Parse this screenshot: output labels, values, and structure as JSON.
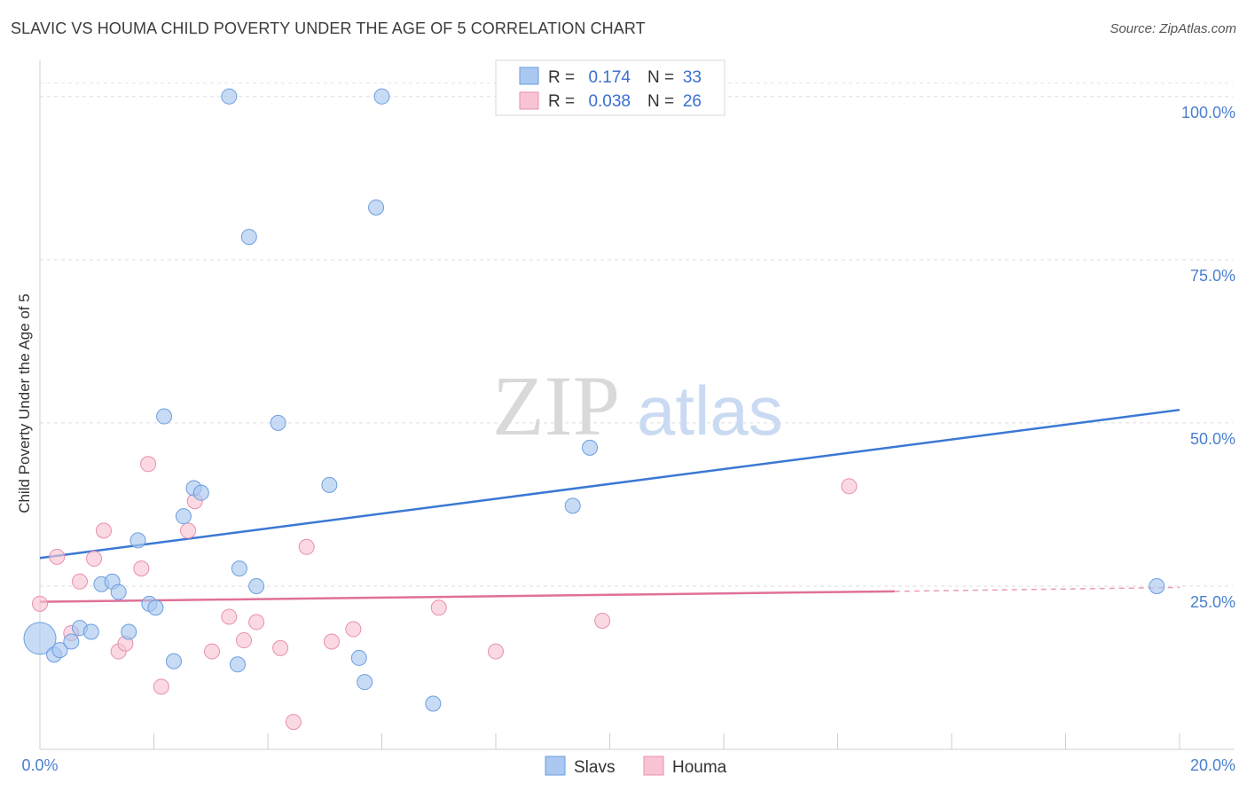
{
  "title": "SLAVIC VS HOUMA CHILD POVERTY UNDER THE AGE OF 5 CORRELATION CHART",
  "source": "Source: ZipAtlas.com",
  "watermark": {
    "zip": "ZIP",
    "atlas": "atlas"
  },
  "colors": {
    "slavs_fill": "#aac8f0",
    "slavs_stroke": "#6b9ee0",
    "slavs_line": "#3a78d4",
    "houma_fill": "#f8c4d4",
    "houma_stroke": "#e890aa",
    "houma_line": "#e0709a",
    "tick_label": "#4a7fd0"
  },
  "legend": {
    "rows": [
      {
        "r_label": "R =",
        "r_value": "0.174",
        "n_label": "N =",
        "n_value": "33"
      },
      {
        "r_label": "R =",
        "r_value": "0.038",
        "n_label": "N =",
        "n_value": "26"
      }
    ]
  },
  "chart_data": {
    "type": "scatter",
    "title": "SLAVIC VS HOUMA CHILD POVERTY UNDER THE AGE OF 5 CORRELATION CHART",
    "xlabel": "",
    "ylabel": "Child Poverty Under the Age of 5",
    "xlim": [
      0,
      20
    ],
    "ylim": [
      0,
      105
    ],
    "x_tick_labels": [
      "0.0%",
      "20.0%"
    ],
    "y_ticks": [
      25,
      50,
      75,
      100
    ],
    "y_tick_labels": [
      "25.0%",
      "50.0%",
      "75.0%",
      "100.0%"
    ],
    "grid": true,
    "legend_position": "top-center",
    "series": [
      {
        "name": "Slavs",
        "points": [
          [
            0.0,
            17.0
          ],
          [
            0.25,
            14.5
          ],
          [
            0.35,
            15.2
          ],
          [
            0.55,
            16.5
          ],
          [
            0.7,
            18.6
          ],
          [
            0.9,
            18.0
          ],
          [
            1.08,
            25.3
          ],
          [
            1.27,
            25.7
          ],
          [
            1.38,
            24.1
          ],
          [
            1.56,
            18.0
          ],
          [
            1.72,
            32.0
          ],
          [
            1.92,
            22.3
          ],
          [
            2.03,
            21.7
          ],
          [
            2.18,
            51.0
          ],
          [
            2.35,
            13.5
          ],
          [
            2.52,
            35.7
          ],
          [
            2.7,
            40.0
          ],
          [
            2.83,
            39.3
          ],
          [
            3.32,
            100.0
          ],
          [
            3.47,
            13.0
          ],
          [
            3.5,
            27.7
          ],
          [
            3.67,
            78.5
          ],
          [
            3.8,
            25.0
          ],
          [
            4.18,
            50.0
          ],
          [
            5.08,
            40.5
          ],
          [
            5.6,
            14.0
          ],
          [
            5.7,
            10.3
          ],
          [
            5.9,
            83.0
          ],
          [
            6.0,
            100.0
          ],
          [
            6.9,
            7.0
          ],
          [
            9.35,
            37.3
          ],
          [
            9.65,
            46.2
          ],
          [
            19.6,
            25.0
          ]
        ],
        "trend": [
          [
            0.0,
            29.3
          ],
          [
            20.0,
            52.0
          ]
        ]
      },
      {
        "name": "Houma",
        "points": [
          [
            0.0,
            22.3
          ],
          [
            0.3,
            29.5
          ],
          [
            0.55,
            17.8
          ],
          [
            0.7,
            25.7
          ],
          [
            0.95,
            29.2
          ],
          [
            1.12,
            33.5
          ],
          [
            1.38,
            15.0
          ],
          [
            1.5,
            16.2
          ],
          [
            1.78,
            27.7
          ],
          [
            1.9,
            43.7
          ],
          [
            2.13,
            9.6
          ],
          [
            2.6,
            33.5
          ],
          [
            2.72,
            38.0
          ],
          [
            3.02,
            15.0
          ],
          [
            3.32,
            20.3
          ],
          [
            3.58,
            16.7
          ],
          [
            3.8,
            19.5
          ],
          [
            4.22,
            15.5
          ],
          [
            4.45,
            4.2
          ],
          [
            4.68,
            31.0
          ],
          [
            5.12,
            16.5
          ],
          [
            5.5,
            18.4
          ],
          [
            7.0,
            21.7
          ],
          [
            8.0,
            15.0
          ],
          [
            9.87,
            19.7
          ],
          [
            14.2,
            40.3
          ]
        ],
        "trend": [
          [
            0.0,
            22.6
          ],
          [
            15.0,
            24.2
          ]
        ],
        "trend_dashed": [
          [
            15.0,
            24.2
          ],
          [
            20.0,
            24.8
          ]
        ]
      }
    ]
  },
  "bottom_legend": [
    {
      "label": "Slavs"
    },
    {
      "label": "Houma"
    }
  ]
}
